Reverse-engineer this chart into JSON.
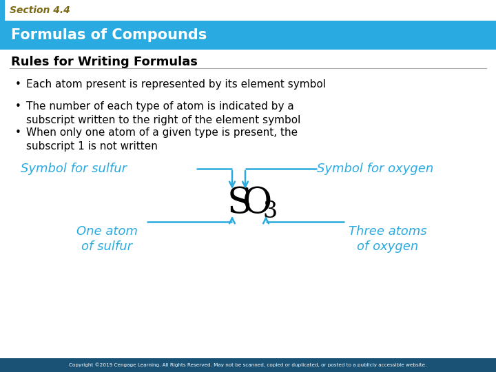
{
  "section_label": "Section 4.4",
  "title": "Formulas of Compounds",
  "subtitle": "Rules for Writing Formulas",
  "bullets": [
    "Each atom present is represented by its element symbol",
    "The number of each type of atom is indicated by a\nsubscript written to the right of the element symbol",
    "When only one atom of a given type is present, the\nsubscript 1 is not written"
  ],
  "copyright": "Copyright ©2019 Cengage Learning. All Rights Reserved. May not be scanned, copied or duplicated, or posted to a publicly accessible website.",
  "cyan_color": "#29ABE2",
  "header_bg": "#29ABE2",
  "section_text_color": "#7B6914",
  "title_text_color": "#FFFFFF",
  "subtitle_color": "#000000",
  "bullet_color": "#000000",
  "formula_color": "#000000",
  "footer_bg": "#1A5276",
  "footer_text_color": "#FFFFFF",
  "label_sulfur_top": "Symbol for sulfur",
  "label_oxygen_top": "Symbol for oxygen",
  "label_sulfur_bot": "One atom\nof sulfur",
  "label_oxygen_bot": "Three atoms\nof oxygen"
}
